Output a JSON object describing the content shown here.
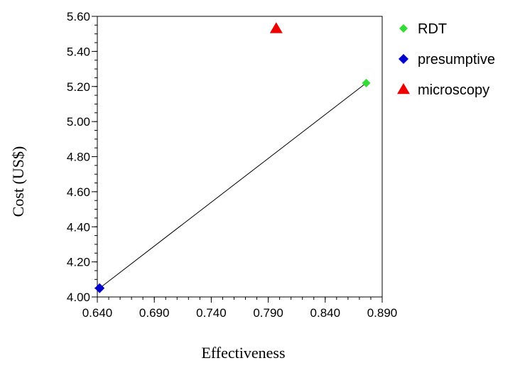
{
  "chart_data": {
    "type": "scatter",
    "xlabel": "Effectiveness",
    "ylabel": "Cost (US$)",
    "xlim": [
      0.64,
      0.89
    ],
    "ylim": [
      4.0,
      5.6
    ],
    "xticks": [
      0.64,
      0.69,
      0.74,
      0.79,
      0.84,
      0.89
    ],
    "yticks": [
      4.0,
      4.2,
      4.4,
      4.6,
      4.8,
      5.0,
      5.2,
      5.4,
      5.6
    ],
    "x_minor_step": 0.01,
    "y_minor_step": 0.05,
    "xtick_labels": [
      "0.640",
      "0.690",
      "0.740",
      "0.790",
      "0.840",
      "0.890"
    ],
    "ytick_labels": [
      "4.00",
      "4.20",
      "4.40",
      "4.60",
      "4.80",
      "5.00",
      "5.20",
      "5.40",
      "5.60"
    ],
    "grid": false,
    "legend_position": "right",
    "series": [
      {
        "name": "RDT",
        "x": [
          0.876
        ],
        "y": [
          5.22
        ],
        "color": "#33dd33",
        "marker": "diamond-small"
      },
      {
        "name": "presumptive",
        "x": [
          0.642
        ],
        "y": [
          4.05
        ],
        "color": "#0000cc",
        "marker": "diamond"
      },
      {
        "name": "microscopy",
        "x": [
          0.797
        ],
        "y": [
          5.53
        ],
        "color": "#ee0000",
        "marker": "triangle"
      }
    ],
    "frontier_line": {
      "from": [
        0.642,
        4.05
      ],
      "to": [
        0.876,
        5.22
      ],
      "color": "#000000"
    }
  }
}
